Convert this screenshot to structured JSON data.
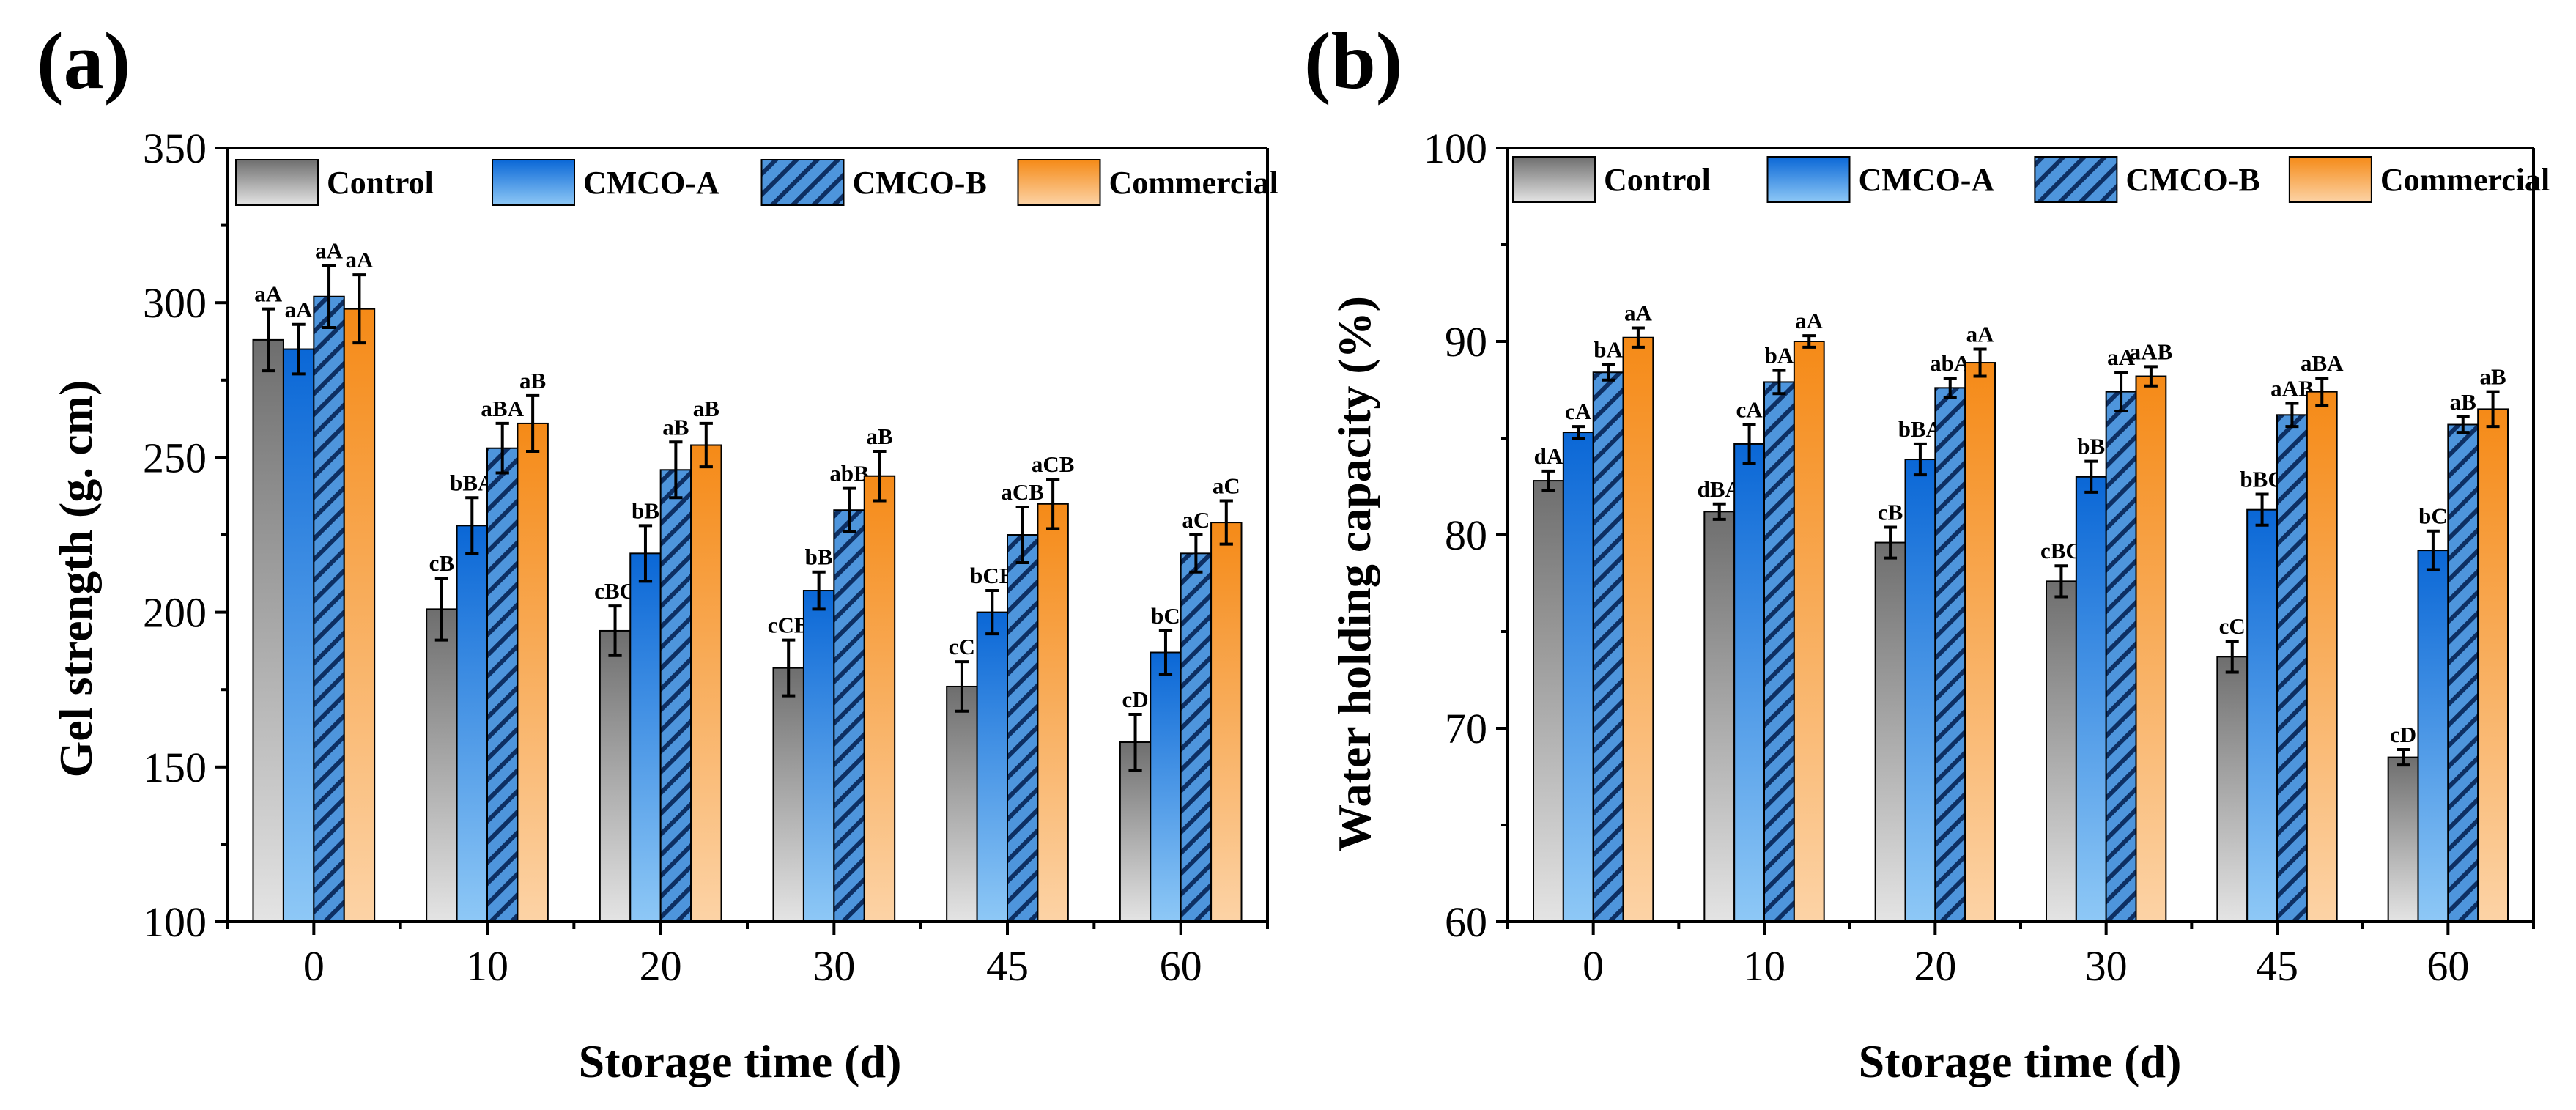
{
  "figure": {
    "description": "Two grouped bar charts of surimi gel properties during storage"
  },
  "legend": {
    "entries": [
      {
        "name": "Control",
        "style": "gray-gradient"
      },
      {
        "name": "CMCO-A",
        "style": "blue-gradient"
      },
      {
        "name": "CMCO-B",
        "style": "blue-hatched"
      },
      {
        "name": "Commercial",
        "style": "orange-gradient"
      }
    ]
  },
  "colors": {
    "control_top": "#6e6e6e",
    "control_bottom": "#e4e4e4",
    "cmcoa_top": "#0a67d6",
    "cmcoa_bottom": "#8ec8f6",
    "cmcob_fill": "#4e95dc",
    "cmcob_hatch": "#0d2f63",
    "commercial_top": "#f58a17",
    "commercial_bottom": "#fcd3a6",
    "axis": "#000000"
  },
  "chart_data": [
    {
      "panel_label": "(a)",
      "type": "bar",
      "title": "",
      "xlabel": "Storage time (d)",
      "ylabel": "Gel strength (g. cm)",
      "ylim": [
        100,
        350
      ],
      "yticks": [
        100,
        150,
        200,
        250,
        300,
        350
      ],
      "categories": [
        "0",
        "10",
        "20",
        "30",
        "45",
        "60"
      ],
      "series": [
        {
          "name": "Control",
          "values": [
            288,
            201,
            194,
            182,
            176,
            158
          ],
          "errors": [
            10,
            10,
            8,
            9,
            8,
            9
          ],
          "labels": [
            "aA",
            "cB",
            "cBC",
            "cCB",
            "cC",
            "cD"
          ]
        },
        {
          "name": "CMCO-A",
          "values": [
            285,
            228,
            219,
            207,
            200,
            187
          ],
          "errors": [
            8,
            9,
            9,
            6,
            7,
            7
          ],
          "labels": [
            "aA",
            "bBA",
            "bB",
            "bB",
            "bCB",
            "bC"
          ]
        },
        {
          "name": "CMCO-B",
          "values": [
            302,
            253,
            246,
            233,
            225,
            219
          ],
          "errors": [
            10,
            8,
            9,
            7,
            9,
            6
          ],
          "labels": [
            "aA",
            "aBA",
            "aB",
            "abB",
            "aCB",
            "aC"
          ]
        },
        {
          "name": "Commercial",
          "values": [
            298,
            261,
            254,
            244,
            235,
            229
          ],
          "errors": [
            11,
            9,
            7,
            8,
            8,
            7
          ],
          "labels": [
            "aA",
            "aB",
            "aB",
            "aB",
            "aCB",
            "aC"
          ]
        }
      ],
      "legend_position": "top",
      "grid": false
    },
    {
      "panel_label": "(b)",
      "type": "bar",
      "title": "",
      "xlabel": "Storage time (d)",
      "ylabel": "Water holding capacity (%)",
      "ylim": [
        60,
        100
      ],
      "yticks": [
        60,
        70,
        80,
        90,
        100
      ],
      "categories": [
        "0",
        "10",
        "20",
        "30",
        "45",
        "60"
      ],
      "series": [
        {
          "name": "Control",
          "values": [
            82.8,
            81.2,
            79.6,
            77.6,
            73.7,
            68.5
          ],
          "errors": [
            0.5,
            0.4,
            0.8,
            0.8,
            0.8,
            0.4
          ],
          "labels": [
            "dA",
            "dBA",
            "cB",
            "cBC",
            "cC",
            "cD"
          ]
        },
        {
          "name": "CMCO-A",
          "values": [
            85.3,
            84.7,
            83.9,
            83.0,
            81.3,
            79.2
          ],
          "errors": [
            0.3,
            1.0,
            0.8,
            0.8,
            0.8,
            1.0
          ],
          "labels": [
            "cA",
            "cA",
            "bBA",
            "bB",
            "bBC",
            "bC"
          ]
        },
        {
          "name": "CMCO-B",
          "values": [
            88.4,
            87.9,
            87.6,
            87.4,
            86.2,
            85.7
          ],
          "errors": [
            0.4,
            0.6,
            0.5,
            1.0,
            0.6,
            0.4
          ],
          "labels": [
            "bA",
            "bA",
            "abA",
            "aA",
            "aAB",
            "aB"
          ]
        },
        {
          "name": "Commercial",
          "values": [
            90.2,
            90.0,
            88.9,
            88.2,
            87.4,
            86.5
          ],
          "errors": [
            0.5,
            0.3,
            0.7,
            0.5,
            0.7,
            0.9
          ],
          "labels": [
            "aA",
            "aA",
            "aA",
            "aAB",
            "aBA",
            "aB"
          ]
        }
      ],
      "legend_position": "top",
      "grid": false
    }
  ]
}
